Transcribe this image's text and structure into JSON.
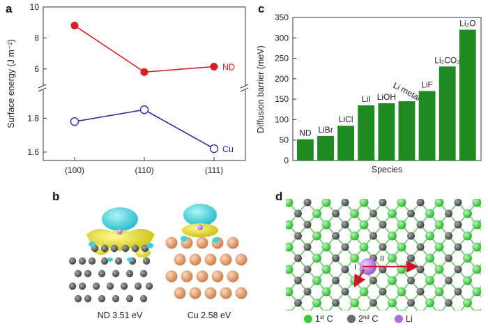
{
  "panels": {
    "a": "a",
    "b": "b",
    "c": "c",
    "d": "d"
  },
  "chart_data": [
    {
      "type": "line",
      "panel": "a",
      "xlabel": "",
      "ylabel": "Surface energy (J m⁻²)",
      "categories": [
        "(100)",
        "(110)",
        "(111)"
      ],
      "y_break": true,
      "upper_ylim": [
        5,
        10
      ],
      "upper_yticks": [
        "6",
        "8",
        "10"
      ],
      "lower_ylim": [
        1.55,
        1.95
      ],
      "lower_yticks": [
        "1.6",
        "1.8"
      ],
      "series": [
        {
          "name": "ND",
          "values": [
            8.8,
            5.8,
            6.15
          ],
          "color": "#d42020",
          "marker": "filled-circle"
        },
        {
          "name": "Cu",
          "values": [
            1.78,
            1.85,
            1.62
          ],
          "color": "#2b2fa5",
          "marker": "open-circle"
        }
      ]
    },
    {
      "type": "bar",
      "panel": "c",
      "xlabel": "Species",
      "ylabel": "Diffusion barrier (meV)",
      "ylim": [
        0,
        350
      ],
      "yticks": [
        "0",
        "50",
        "100",
        "150",
        "200",
        "250",
        "300",
        "350"
      ],
      "categories": [
        "ND",
        "LiBr",
        "LiCl",
        "LiI",
        "LiOH",
        "Li metal",
        "LiF",
        "Li₂CO₃",
        "Li₂O"
      ],
      "values": [
        52,
        60,
        85,
        135,
        140,
        145,
        170,
        230,
        320
      ],
      "bar_color": "#1f8a1f",
      "highlight_color": "#d42020"
    }
  ],
  "panel_b": {
    "nd_caption": "ND 3.51 eV",
    "cu_caption": "Cu 2.58 eV",
    "colors": {
      "charge_accumulation": "#e8e000",
      "charge_depletion": "#3fd0d8",
      "carbon": "#4a4a4a",
      "copper": "#d88f5e",
      "lithium": "#9c6ac9"
    }
  },
  "panel_d": {
    "legend": [
      {
        "name": "1st C",
        "base": "1",
        "sup": "st",
        "rest": " C",
        "color": "#39cc39"
      },
      {
        "name": "2nd C",
        "base": "2",
        "sup": "nd",
        "rest": " C",
        "color": "#6a6a6a"
      },
      {
        "name": "Li",
        "base": "Li",
        "sup": "",
        "rest": "",
        "color": "#b071d6"
      }
    ],
    "path_labels": [
      "I",
      "II"
    ]
  }
}
